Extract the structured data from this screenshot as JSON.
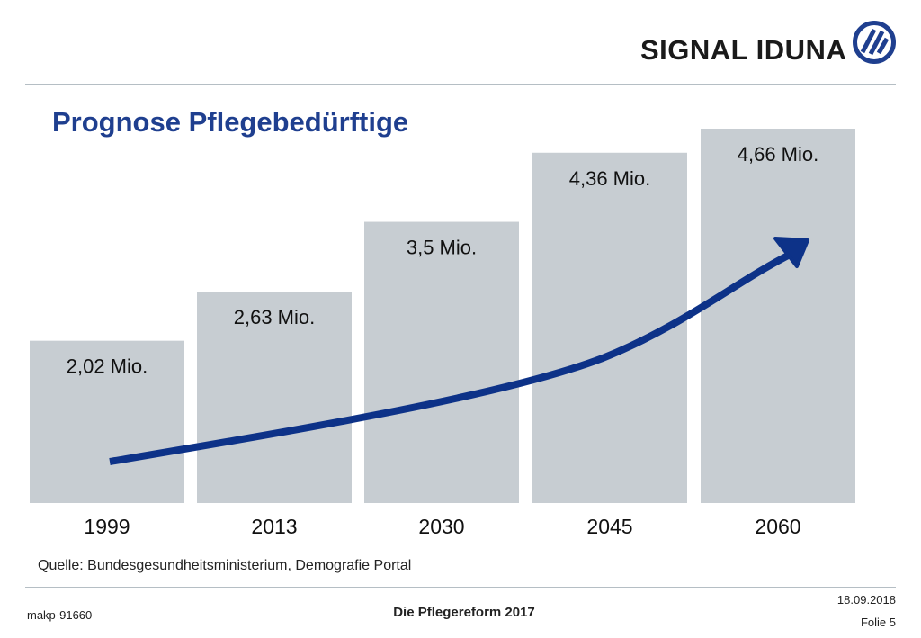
{
  "brand": {
    "name": "SIGNAL IDUNA",
    "logo_icon": "signal-iduna-logo-icon",
    "color": "#1f3f8f"
  },
  "title": "Prognose Pflegebedürftige",
  "chart_data": {
    "type": "bar",
    "categories": [
      "1999",
      "2013",
      "2030",
      "2045",
      "2060"
    ],
    "values": [
      2.02,
      2.63,
      3.5,
      4.36,
      4.66
    ],
    "value_labels": [
      "2,02 Mio.",
      "2,63 Mio.",
      "3,5 Mio.",
      "4,36 Mio.",
      "4,66 Mio."
    ],
    "unit": "Mio.",
    "bar_color": "#c7cdd2",
    "trend_arrow": {
      "color": "#0d3288",
      "direction": "up-right"
    },
    "grid": false
  },
  "source": "Quelle: Bundesgesundheitsministerium, Demografie Portal",
  "footer": {
    "id": "makp-91660",
    "title": "Die Pflegereform 2017",
    "date": "18.09.2018",
    "slide": "Folie 5"
  }
}
